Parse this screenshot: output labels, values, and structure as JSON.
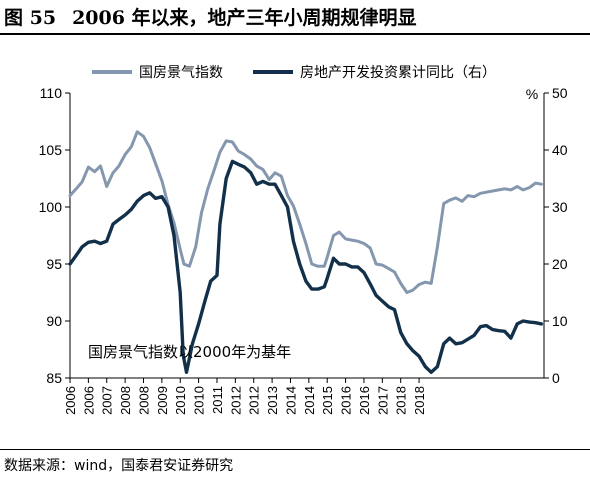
{
  "figure": {
    "number": "图 55",
    "title": "2006 年以来，地产三年小周期规律明显"
  },
  "source_note": "数据来源：wind，国泰君安证券研究",
  "colors": {
    "series_index": "#8497ae",
    "series_invest": "#13304a"
  },
  "chart_data": {
    "type": "line",
    "legend_position": "top",
    "grid": false,
    "annotation": "国房景气指数以2000年为基年",
    "x_tick_labels": [
      "2006",
      "2006",
      "2007",
      "2008",
      "2008",
      "2009",
      "2010",
      "2010",
      "2011",
      "2012",
      "2012",
      "2013",
      "2014",
      "2014",
      "2015",
      "2016",
      "2016",
      "2017",
      "2018",
      "2018"
    ],
    "x_tick_positions": [
      2006.0,
      2006.5,
      2007.0,
      2007.5,
      2008.0,
      2008.5,
      2009.0,
      2009.5,
      2010.0,
      2010.5,
      2011.0,
      2011.5,
      2012.0,
      2012.5,
      2013.0,
      2013.5,
      2014.0,
      2014.5,
      2015.0,
      2015.5
    ],
    "x_range": [
      2006.0,
      2018.9
    ],
    "y_left": {
      "range": [
        85,
        110
      ],
      "ticks": [
        "85",
        "90",
        "95",
        "100",
        "105",
        "110"
      ]
    },
    "y_right": {
      "range": [
        0,
        50
      ],
      "ticks": [
        "0",
        "10",
        "20",
        "30",
        "40",
        "50"
      ],
      "unit": "%"
    },
    "series": [
      {
        "name": "国房景气指数",
        "axis": "left",
        "points": [
          [
            2006.0,
            101.0
          ],
          [
            2006.17,
            101.6
          ],
          [
            2006.33,
            102.2
          ],
          [
            2006.5,
            103.5
          ],
          [
            2006.67,
            103.1
          ],
          [
            2006.83,
            103.6
          ],
          [
            2007.0,
            101.8
          ],
          [
            2007.17,
            103.0
          ],
          [
            2007.33,
            103.6
          ],
          [
            2007.5,
            104.6
          ],
          [
            2007.67,
            105.3
          ],
          [
            2007.83,
            106.6
          ],
          [
            2008.0,
            106.2
          ],
          [
            2008.17,
            105.2
          ],
          [
            2008.33,
            103.8
          ],
          [
            2008.5,
            102.3
          ],
          [
            2008.67,
            100.2
          ],
          [
            2008.83,
            98.6
          ],
          [
            2009.0,
            96.3
          ],
          [
            2009.1,
            95.0
          ],
          [
            2009.25,
            94.8
          ],
          [
            2009.42,
            96.5
          ],
          [
            2009.58,
            99.5
          ],
          [
            2009.75,
            101.6
          ],
          [
            2009.92,
            103.2
          ],
          [
            2010.08,
            104.8
          ],
          [
            2010.25,
            105.8
          ],
          [
            2010.42,
            105.7
          ],
          [
            2010.58,
            104.9
          ],
          [
            2010.75,
            104.6
          ],
          [
            2010.92,
            104.2
          ],
          [
            2011.08,
            103.6
          ],
          [
            2011.25,
            103.3
          ],
          [
            2011.42,
            102.4
          ],
          [
            2011.58,
            103.0
          ],
          [
            2011.75,
            102.7
          ],
          [
            2011.92,
            101.0
          ],
          [
            2012.08,
            100.1
          ],
          [
            2012.25,
            98.5
          ],
          [
            2012.42,
            96.8
          ],
          [
            2012.58,
            95.0
          ],
          [
            2012.75,
            94.8
          ],
          [
            2012.92,
            94.8
          ],
          [
            2013.0,
            95.6
          ],
          [
            2013.17,
            97.5
          ],
          [
            2013.33,
            97.8
          ],
          [
            2013.5,
            97.2
          ],
          [
            2013.67,
            97.1
          ],
          [
            2013.83,
            97.0
          ],
          [
            2014.0,
            96.8
          ],
          [
            2014.17,
            96.4
          ],
          [
            2014.33,
            95.0
          ],
          [
            2014.5,
            94.9
          ],
          [
            2014.67,
            94.6
          ],
          [
            2014.83,
            94.3
          ],
          [
            2015.0,
            93.3
          ],
          [
            2015.17,
            92.5
          ],
          [
            2015.33,
            92.7
          ],
          [
            2015.5,
            93.2
          ],
          [
            2015.67,
            93.4
          ],
          [
            2015.83,
            93.3
          ],
          [
            2016.0,
            96.5
          ],
          [
            2016.17,
            100.3
          ],
          [
            2016.33,
            100.6
          ],
          [
            2016.5,
            100.8
          ],
          [
            2016.67,
            100.5
          ],
          [
            2016.83,
            101.0
          ],
          [
            2017.0,
            100.9
          ],
          [
            2017.17,
            101.2
          ],
          [
            2017.33,
            101.3
          ],
          [
            2017.5,
            101.4
          ],
          [
            2017.67,
            101.5
          ],
          [
            2017.83,
            101.6
          ],
          [
            2018.0,
            101.5
          ],
          [
            2018.17,
            101.8
          ],
          [
            2018.33,
            101.5
          ],
          [
            2018.5,
            101.7
          ],
          [
            2018.67,
            102.1
          ],
          [
            2018.83,
            102.0
          ]
        ]
      },
      {
        "name": "房地产开发投资累计同比（右）",
        "axis": "right",
        "points": [
          [
            2006.0,
            20.0
          ],
          [
            2006.17,
            21.5
          ],
          [
            2006.33,
            23.0
          ],
          [
            2006.5,
            23.8
          ],
          [
            2006.67,
            24.0
          ],
          [
            2006.83,
            23.6
          ],
          [
            2007.0,
            24.0
          ],
          [
            2007.17,
            27.0
          ],
          [
            2007.33,
            27.8
          ],
          [
            2007.5,
            28.6
          ],
          [
            2007.67,
            29.6
          ],
          [
            2007.83,
            31.0
          ],
          [
            2008.0,
            32.0
          ],
          [
            2008.17,
            32.5
          ],
          [
            2008.33,
            31.5
          ],
          [
            2008.5,
            31.8
          ],
          [
            2008.67,
            30.0
          ],
          [
            2008.83,
            25.0
          ],
          [
            2009.0,
            15.0
          ],
          [
            2009.08,
            4.0
          ],
          [
            2009.17,
            1.0
          ],
          [
            2009.33,
            6.0
          ],
          [
            2009.5,
            9.5
          ],
          [
            2009.67,
            13.5
          ],
          [
            2009.83,
            17.0
          ],
          [
            2010.0,
            18.0
          ],
          [
            2010.08,
            27.0
          ],
          [
            2010.25,
            35.0
          ],
          [
            2010.42,
            38.0
          ],
          [
            2010.58,
            37.5
          ],
          [
            2010.75,
            37.0
          ],
          [
            2010.92,
            36.0
          ],
          [
            2011.08,
            34.0
          ],
          [
            2011.25,
            34.5
          ],
          [
            2011.42,
            34.0
          ],
          [
            2011.58,
            34.0
          ],
          [
            2011.75,
            32.0
          ],
          [
            2011.92,
            30.0
          ],
          [
            2012.08,
            24.0
          ],
          [
            2012.25,
            20.0
          ],
          [
            2012.42,
            17.0
          ],
          [
            2012.58,
            15.6
          ],
          [
            2012.75,
            15.6
          ],
          [
            2012.92,
            16.0
          ],
          [
            2013.0,
            17.5
          ],
          [
            2013.17,
            21.0
          ],
          [
            2013.33,
            20.0
          ],
          [
            2013.5,
            20.0
          ],
          [
            2013.67,
            19.5
          ],
          [
            2013.83,
            19.5
          ],
          [
            2014.0,
            18.5
          ],
          [
            2014.17,
            16.5
          ],
          [
            2014.33,
            14.5
          ],
          [
            2014.5,
            13.5
          ],
          [
            2014.67,
            12.5
          ],
          [
            2014.83,
            12.0
          ],
          [
            2015.0,
            8.0
          ],
          [
            2015.17,
            6.0
          ],
          [
            2015.33,
            4.8
          ],
          [
            2015.5,
            3.8
          ],
          [
            2015.67,
            2.0
          ],
          [
            2015.83,
            1.0
          ],
          [
            2016.0,
            2.0
          ],
          [
            2016.17,
            6.0
          ],
          [
            2016.33,
            7.0
          ],
          [
            2016.5,
            6.0
          ],
          [
            2016.67,
            6.2
          ],
          [
            2016.83,
            6.8
          ],
          [
            2017.0,
            7.5
          ],
          [
            2017.17,
            9.0
          ],
          [
            2017.33,
            9.2
          ],
          [
            2017.5,
            8.5
          ],
          [
            2017.67,
            8.3
          ],
          [
            2017.83,
            8.2
          ],
          [
            2018.0,
            7.0
          ],
          [
            2018.17,
            9.5
          ],
          [
            2018.33,
            10.0
          ],
          [
            2018.5,
            9.8
          ],
          [
            2018.67,
            9.7
          ],
          [
            2018.83,
            9.5
          ]
        ]
      }
    ]
  }
}
